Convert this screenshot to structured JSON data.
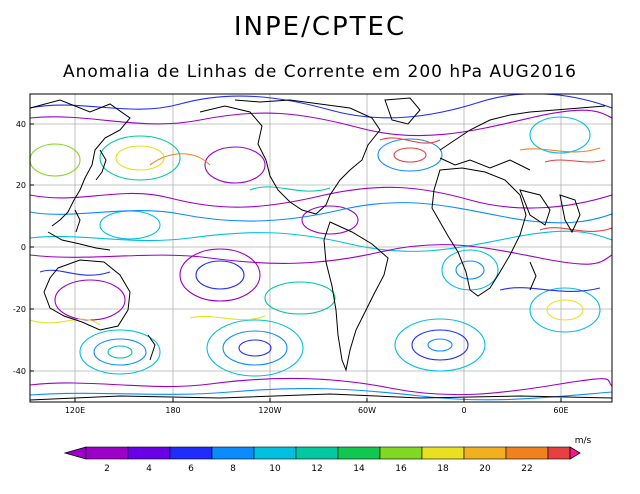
{
  "header": {
    "title": "INPE/CPTEC",
    "subtitle": "Anomalia de Linhas de Corrente em 200 hPa AUG2016"
  },
  "map": {
    "lon_labels": [
      "120E",
      "180",
      "120W",
      "60W",
      "0",
      "60E"
    ],
    "lat_labels": [
      "40",
      "20",
      "0",
      "-20",
      "-40"
    ],
    "grid_line_color": "#a0a0a0",
    "coastline_color": "#000000"
  },
  "colorbar": {
    "unit": "m/s",
    "labels": [
      "2",
      "4",
      "6",
      "8",
      "10",
      "12",
      "14",
      "16",
      "18",
      "20",
      "22"
    ],
    "colors": [
      "#9c00c8",
      "#6a00e8",
      "#1f2cff",
      "#0a8cff",
      "#00c0e0",
      "#00c8a0",
      "#10c850",
      "#80d820",
      "#e8e020",
      "#f0b020",
      "#f08020",
      "#e84040",
      "#ff1493"
    ]
  },
  "style_colors": {
    "stream_colors": [
      "#9c00c8",
      "#1f2cff",
      "#0a8cff",
      "#00c0e0",
      "#00c8a0",
      "#80d820",
      "#e8e020",
      "#f08020",
      "#e84040"
    ]
  }
}
